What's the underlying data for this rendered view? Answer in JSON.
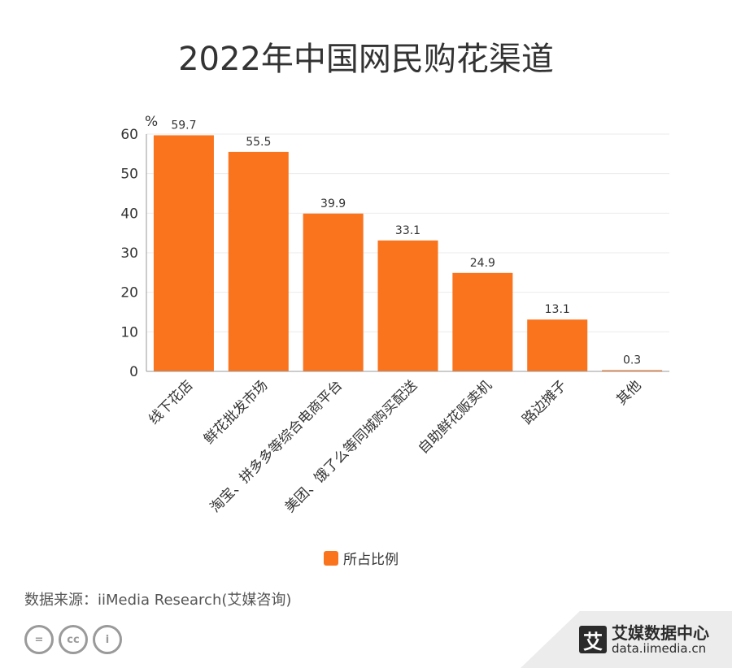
{
  "title": "2022年中国网民购花渠道",
  "unit": "%",
  "source": "数据来源：iiMedia Research(艾媒咨询)",
  "brand": {
    "name": "艾媒数据中心",
    "url": "data.iimedia.cn",
    "mark": "艾"
  },
  "license_icons": [
    "=",
    "cc",
    "i"
  ],
  "colors": {
    "bar": "#FA731D",
    "grid": "#EBEBEB",
    "axis": "#999999",
    "text": "#333333"
  },
  "chart_data": {
    "type": "bar",
    "categories": [
      "线下花店",
      "鲜花批发市场",
      "淘宝、拼多多等综合电商平台",
      "美团、饿了么等同城购买配送",
      "自助鲜花贩卖机",
      "路边摊子",
      "其他"
    ],
    "series": [
      {
        "name": "所占比例",
        "values": [
          59.7,
          55.5,
          39.9,
          33.1,
          24.9,
          13.1,
          0.3
        ]
      }
    ],
    "ylim": [
      0,
      60
    ],
    "yticks": [
      0,
      10,
      20,
      30,
      40,
      50,
      60
    ],
    "ylabel": "%",
    "xlabel": "",
    "grid": true,
    "legend": "bottom"
  }
}
